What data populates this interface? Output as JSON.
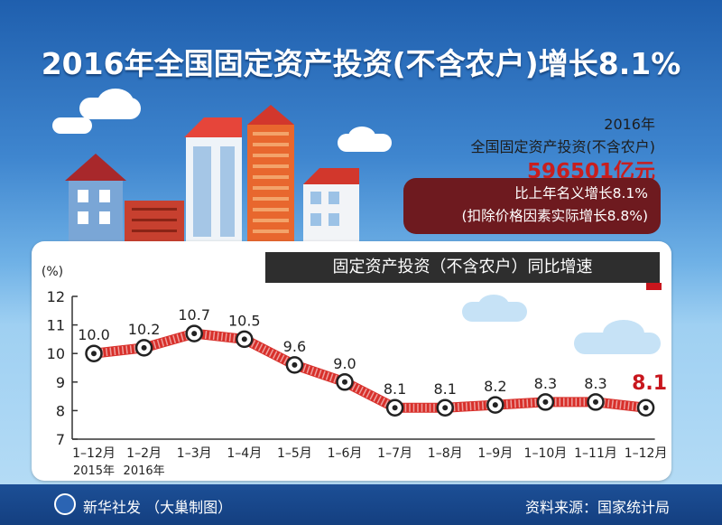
{
  "header": {
    "title": "2016年全国固定资产投资(不含农户)增长8.1%"
  },
  "info": {
    "year": "2016年",
    "label": "全国固定资产投资(不含农户)",
    "amount": "596501亿元",
    "growth_nominal": "比上年名义增长8.1%",
    "growth_real": "(扣除价格因素实际增长8.8%)"
  },
  "colors": {
    "line": "#d8302b",
    "title_text": "#ffffff",
    "banner": "#2e2e2e",
    "highlight": "#c8161d"
  },
  "chart_data": {
    "type": "line",
    "title": "固定资产投资（不含农户）同比增速",
    "ylabel": "(%)",
    "ylim": [
      7,
      12
    ],
    "yticks": [
      "7",
      "8",
      "9",
      "10",
      "11",
      "12"
    ],
    "categories": [
      "1–12月",
      "1–2月",
      "1–3月",
      "1–4月",
      "1–5月",
      "1–6月",
      "1–7月",
      "1–8月",
      "1–9月",
      "1–10月",
      "1–11月",
      "1–12月"
    ],
    "year_labels": [
      "2015年",
      "2016年"
    ],
    "values": [
      10.0,
      10.2,
      10.7,
      10.5,
      9.6,
      9.0,
      8.1,
      8.1,
      8.2,
      8.3,
      8.3,
      8.1
    ],
    "value_labels": [
      "10.0",
      "10.2",
      "10.7",
      "10.5",
      "9.6",
      "9.0",
      "8.1",
      "8.1",
      "8.2",
      "8.3",
      "8.3",
      "8.1"
    ],
    "grid": false
  },
  "footer": {
    "left": "新华社发 （大巢制图）",
    "right": "资料来源：国家统计局"
  }
}
